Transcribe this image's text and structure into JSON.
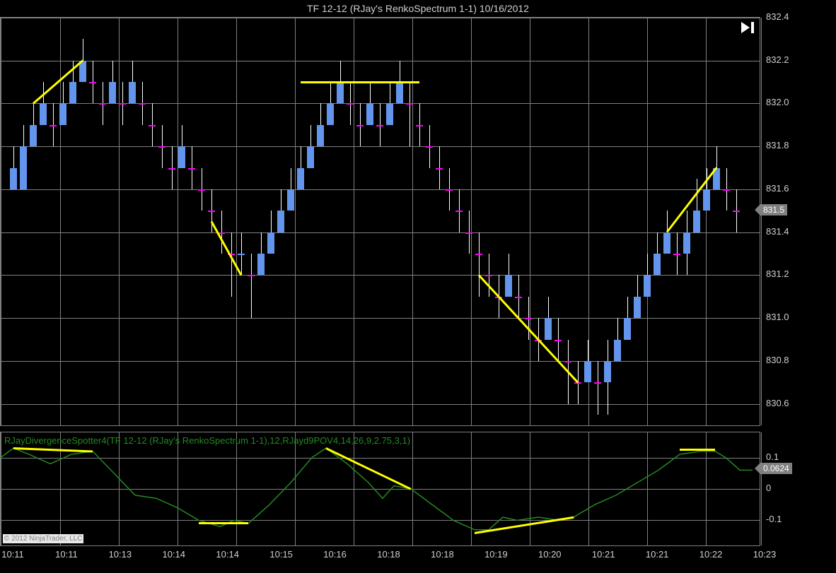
{
  "title": "TF 12-12 (RJay's RenkoSpectrum 1-1)  10/16/2012",
  "indicator_label": "RJayDivergenceSpotter4(TF 12-12 (RJay's RenkoSpectrum 1-1),12,RJayd9POV4,14,26,9,2.75,3,1)",
  "copyright": "© 2012 NinjaTrader, LLC",
  "colors": {
    "background": "#000000",
    "grid": "#808080",
    "text": "#d0d0d0",
    "up_candle": "#6495ed",
    "down_candle": "#ff00ff",
    "wick": "#ffffff",
    "trend_line": "#ffff00",
    "indicator_line": "#228b22",
    "price_marker": "#808080"
  },
  "main_chart": {
    "ymin": 830.5,
    "ymax": 832.4,
    "yticks": [
      830.6,
      830.8,
      831.0,
      831.2,
      831.4,
      831.6,
      831.8,
      832.0,
      832.2,
      832.4
    ],
    "current_price": 831.5,
    "xticks": [
      "10:11",
      "10:11",
      "10:13",
      "10:14",
      "10:14",
      "10:15",
      "10:16",
      "10:18",
      "10:18",
      "10:19",
      "10:20",
      "10:21",
      "10:21",
      "10:22",
      "10:23"
    ],
    "xgrid_positions": [
      0,
      84,
      167,
      250,
      333,
      416,
      499,
      582,
      665,
      748,
      831,
      914,
      997,
      1075
    ],
    "candles": [
      {
        "x": 18,
        "o": 831.6,
        "h": 831.8,
        "l": 831.6,
        "c": 831.7,
        "up": true
      },
      {
        "x": 32,
        "o": 831.6,
        "h": 831.9,
        "l": 831.6,
        "c": 831.8,
        "up": true
      },
      {
        "x": 46,
        "o": 831.8,
        "h": 832.0,
        "l": 831.8,
        "c": 831.9,
        "up": true
      },
      {
        "x": 60,
        "o": 831.9,
        "h": 832.1,
        "l": 831.9,
        "c": 832.0,
        "up": true
      },
      {
        "x": 74,
        "o": 831.9,
        "h": 832.0,
        "l": 831.8,
        "c": 831.9,
        "up": false
      },
      {
        "x": 88,
        "o": 831.9,
        "h": 832.1,
        "l": 831.9,
        "c": 832.0,
        "up": true
      },
      {
        "x": 102,
        "o": 832.0,
        "h": 832.2,
        "l": 832.0,
        "c": 832.1,
        "up": true
      },
      {
        "x": 116,
        "o": 832.1,
        "h": 832.3,
        "l": 832.1,
        "c": 832.2,
        "up": true
      },
      {
        "x": 130,
        "o": 832.1,
        "h": 832.2,
        "l": 832.0,
        "c": 832.1,
        "up": false
      },
      {
        "x": 144,
        "o": 832.0,
        "h": 832.1,
        "l": 831.9,
        "c": 832.0,
        "up": false
      },
      {
        "x": 158,
        "o": 832.0,
        "h": 832.2,
        "l": 832.0,
        "c": 832.1,
        "up": true
      },
      {
        "x": 172,
        "o": 832.0,
        "h": 832.1,
        "l": 831.9,
        "c": 832.0,
        "up": false
      },
      {
        "x": 186,
        "o": 832.0,
        "h": 832.2,
        "l": 832.0,
        "c": 832.1,
        "up": true
      },
      {
        "x": 200,
        "o": 832.0,
        "h": 832.1,
        "l": 831.9,
        "c": 832.0,
        "up": false
      },
      {
        "x": 214,
        "o": 831.9,
        "h": 832.0,
        "l": 831.8,
        "c": 831.9,
        "up": false
      },
      {
        "x": 228,
        "o": 831.8,
        "h": 831.9,
        "l": 831.7,
        "c": 831.8,
        "up": false
      },
      {
        "x": 242,
        "o": 831.7,
        "h": 831.8,
        "l": 831.6,
        "c": 831.7,
        "up": false
      },
      {
        "x": 256,
        "o": 831.7,
        "h": 831.9,
        "l": 831.7,
        "c": 831.8,
        "up": true
      },
      {
        "x": 270,
        "o": 831.7,
        "h": 831.8,
        "l": 831.6,
        "c": 831.7,
        "up": false
      },
      {
        "x": 284,
        "o": 831.6,
        "h": 831.7,
        "l": 831.5,
        "c": 831.6,
        "up": false
      },
      {
        "x": 298,
        "o": 831.5,
        "h": 831.6,
        "l": 831.4,
        "c": 831.5,
        "up": false
      },
      {
        "x": 312,
        "o": 831.4,
        "h": 831.5,
        "l": 831.3,
        "c": 831.4,
        "up": false
      },
      {
        "x": 326,
        "o": 831.3,
        "h": 831.4,
        "l": 831.1,
        "c": 831.3,
        "up": false
      },
      {
        "x": 340,
        "o": 831.3,
        "h": 831.4,
        "l": 831.2,
        "c": 831.3,
        "up": true
      },
      {
        "x": 354,
        "o": 831.2,
        "h": 831.3,
        "l": 831.0,
        "c": 831.2,
        "up": false
      },
      {
        "x": 368,
        "o": 831.2,
        "h": 831.4,
        "l": 831.2,
        "c": 831.3,
        "up": true
      },
      {
        "x": 382,
        "o": 831.3,
        "h": 831.5,
        "l": 831.3,
        "c": 831.4,
        "up": true
      },
      {
        "x": 396,
        "o": 831.4,
        "h": 831.6,
        "l": 831.4,
        "c": 831.5,
        "up": true
      },
      {
        "x": 410,
        "o": 831.5,
        "h": 831.7,
        "l": 831.5,
        "c": 831.6,
        "up": true
      },
      {
        "x": 424,
        "o": 831.6,
        "h": 831.8,
        "l": 831.6,
        "c": 831.7,
        "up": true
      },
      {
        "x": 438,
        "o": 831.7,
        "h": 831.9,
        "l": 831.7,
        "c": 831.8,
        "up": true
      },
      {
        "x": 452,
        "o": 831.8,
        "h": 832.0,
        "l": 831.8,
        "c": 831.9,
        "up": true
      },
      {
        "x": 466,
        "o": 831.9,
        "h": 832.1,
        "l": 831.9,
        "c": 832.0,
        "up": true
      },
      {
        "x": 480,
        "o": 832.0,
        "h": 832.2,
        "l": 832.0,
        "c": 832.1,
        "up": true
      },
      {
        "x": 494,
        "o": 832.0,
        "h": 832.1,
        "l": 831.9,
        "c": 832.0,
        "up": false
      },
      {
        "x": 508,
        "o": 831.9,
        "h": 832.0,
        "l": 831.8,
        "c": 831.9,
        "up": false
      },
      {
        "x": 522,
        "o": 831.9,
        "h": 832.1,
        "l": 831.9,
        "c": 832.0,
        "up": true
      },
      {
        "x": 536,
        "o": 831.9,
        "h": 832.0,
        "l": 831.8,
        "c": 831.9,
        "up": false
      },
      {
        "x": 550,
        "o": 831.9,
        "h": 832.1,
        "l": 831.9,
        "c": 832.0,
        "up": true
      },
      {
        "x": 564,
        "o": 832.0,
        "h": 832.2,
        "l": 832.0,
        "c": 832.1,
        "up": true
      },
      {
        "x": 578,
        "o": 832.0,
        "h": 832.1,
        "l": 831.8,
        "c": 832.0,
        "up": false
      },
      {
        "x": 592,
        "o": 831.9,
        "h": 832.0,
        "l": 831.8,
        "c": 831.9,
        "up": false
      },
      {
        "x": 606,
        "o": 831.8,
        "h": 831.9,
        "l": 831.7,
        "c": 831.8,
        "up": false
      },
      {
        "x": 620,
        "o": 831.7,
        "h": 831.8,
        "l": 831.6,
        "c": 831.7,
        "up": false
      },
      {
        "x": 634,
        "o": 831.6,
        "h": 831.7,
        "l": 831.5,
        "c": 831.6,
        "up": false
      },
      {
        "x": 648,
        "o": 831.5,
        "h": 831.6,
        "l": 831.4,
        "c": 831.5,
        "up": false
      },
      {
        "x": 662,
        "o": 831.4,
        "h": 831.5,
        "l": 831.3,
        "c": 831.4,
        "up": false
      },
      {
        "x": 676,
        "o": 831.3,
        "h": 831.4,
        "l": 831.1,
        "c": 831.3,
        "up": false
      },
      {
        "x": 690,
        "o": 831.2,
        "h": 831.3,
        "l": 831.1,
        "c": 831.2,
        "up": false
      },
      {
        "x": 704,
        "o": 831.1,
        "h": 831.2,
        "l": 831.0,
        "c": 831.1,
        "up": false
      },
      {
        "x": 718,
        "o": 831.1,
        "h": 831.3,
        "l": 831.1,
        "c": 831.2,
        "up": true
      },
      {
        "x": 732,
        "o": 831.1,
        "h": 831.2,
        "l": 831.0,
        "c": 831.1,
        "up": false
      },
      {
        "x": 746,
        "o": 831.0,
        "h": 831.1,
        "l": 830.9,
        "c": 831.0,
        "up": false
      },
      {
        "x": 760,
        "o": 830.9,
        "h": 831.0,
        "l": 830.8,
        "c": 830.9,
        "up": false
      },
      {
        "x": 774,
        "o": 830.9,
        "h": 831.1,
        "l": 830.9,
        "c": 831.0,
        "up": true
      },
      {
        "x": 788,
        "o": 830.9,
        "h": 831.0,
        "l": 830.8,
        "c": 830.9,
        "up": false
      },
      {
        "x": 802,
        "o": 830.8,
        "h": 830.9,
        "l": 830.6,
        "c": 830.8,
        "up": false
      },
      {
        "x": 816,
        "o": 830.7,
        "h": 830.8,
        "l": 830.6,
        "c": 830.7,
        "up": false
      },
      {
        "x": 830,
        "o": 830.7,
        "h": 830.9,
        "l": 830.7,
        "c": 830.8,
        "up": true
      },
      {
        "x": 844,
        "o": 830.7,
        "h": 830.8,
        "l": 830.55,
        "c": 830.7,
        "up": false
      },
      {
        "x": 858,
        "o": 830.7,
        "h": 830.9,
        "l": 830.55,
        "c": 830.8,
        "up": true
      },
      {
        "x": 872,
        "o": 830.8,
        "h": 831.0,
        "l": 830.8,
        "c": 830.9,
        "up": true
      },
      {
        "x": 886,
        "o": 830.9,
        "h": 831.1,
        "l": 830.9,
        "c": 831.0,
        "up": true
      },
      {
        "x": 900,
        "o": 831.0,
        "h": 831.2,
        "l": 831.0,
        "c": 831.1,
        "up": true
      },
      {
        "x": 914,
        "o": 831.1,
        "h": 831.3,
        "l": 831.1,
        "c": 831.2,
        "up": true
      },
      {
        "x": 928,
        "o": 831.2,
        "h": 831.4,
        "l": 831.2,
        "c": 831.3,
        "up": true
      },
      {
        "x": 942,
        "o": 831.3,
        "h": 831.5,
        "l": 831.3,
        "c": 831.4,
        "up": true
      },
      {
        "x": 956,
        "o": 831.3,
        "h": 831.4,
        "l": 831.2,
        "c": 831.3,
        "up": false
      },
      {
        "x": 970,
        "o": 831.3,
        "h": 831.5,
        "l": 831.2,
        "c": 831.4,
        "up": true
      },
      {
        "x": 984,
        "o": 831.4,
        "h": 831.65,
        "l": 831.4,
        "c": 831.5,
        "up": true
      },
      {
        "x": 998,
        "o": 831.5,
        "h": 831.7,
        "l": 831.5,
        "c": 831.6,
        "up": true
      },
      {
        "x": 1012,
        "o": 831.6,
        "h": 831.8,
        "l": 831.6,
        "c": 831.7,
        "up": true
      },
      {
        "x": 1026,
        "o": 831.6,
        "h": 831.7,
        "l": 831.5,
        "c": 831.6,
        "up": false
      },
      {
        "x": 1040,
        "o": 831.5,
        "h": 831.6,
        "l": 831.4,
        "c": 831.5,
        "up": false
      }
    ],
    "trend_lines": [
      {
        "x1": 46,
        "y1": 832.0,
        "x2": 116,
        "y2": 832.2
      },
      {
        "x1": 298,
        "y1": 831.45,
        "x2": 340,
        "y2": 831.2
      },
      {
        "x1": 424,
        "y1": 832.1,
        "x2": 592,
        "y2": 832.1
      },
      {
        "x1": 676,
        "y1": 831.2,
        "x2": 816,
        "y2": 830.7
      },
      {
        "x1": 942,
        "y1": 831.4,
        "x2": 1012,
        "y2": 831.7
      }
    ]
  },
  "indicator_chart": {
    "ymin": -0.18,
    "ymax": 0.18,
    "yticks": [
      -0.1,
      0,
      0.1
    ],
    "current_value": 0.0624,
    "line_points": [
      [
        0,
        0.1
      ],
      [
        18,
        0.13
      ],
      [
        40,
        0.11
      ],
      [
        70,
        0.08
      ],
      [
        100,
        0.11
      ],
      [
        130,
        0.12
      ],
      [
        160,
        0.05
      ],
      [
        190,
        -0.02
      ],
      [
        220,
        -0.03
      ],
      [
        250,
        -0.06
      ],
      [
        280,
        -0.1
      ],
      [
        310,
        -0.12
      ],
      [
        330,
        -0.1
      ],
      [
        350,
        -0.11
      ],
      [
        380,
        -0.05
      ],
      [
        410,
        0.02
      ],
      [
        440,
        0.1
      ],
      [
        460,
        0.13
      ],
      [
        490,
        0.08
      ],
      [
        520,
        0.02
      ],
      [
        540,
        -0.03
      ],
      [
        556,
        0.01
      ],
      [
        580,
        0.0
      ],
      [
        610,
        -0.05
      ],
      [
        640,
        -0.1
      ],
      [
        670,
        -0.13
      ],
      [
        690,
        -0.13
      ],
      [
        710,
        -0.09
      ],
      [
        730,
        -0.1
      ],
      [
        760,
        -0.09
      ],
      [
        790,
        -0.1
      ],
      [
        810,
        -0.09
      ],
      [
        840,
        -0.05
      ],
      [
        870,
        -0.02
      ],
      [
        900,
        0.02
      ],
      [
        930,
        0.06
      ],
      [
        960,
        0.11
      ],
      [
        990,
        0.12
      ],
      [
        1010,
        0.12
      ],
      [
        1025,
        0.1
      ],
      [
        1045,
        0.06
      ],
      [
        1063,
        0.06
      ]
    ],
    "trend_lines": [
      {
        "x1": 18,
        "y1": 0.13,
        "x2": 130,
        "y2": 0.12
      },
      {
        "x1": 280,
        "y1": -0.11,
        "x2": 350,
        "y2": -0.11
      },
      {
        "x1": 460,
        "y1": 0.13,
        "x2": 580,
        "y2": 0.0
      },
      {
        "x1": 670,
        "y1": -0.14,
        "x2": 810,
        "y2": -0.09
      },
      {
        "x1": 960,
        "y1": 0.125,
        "x2": 1010,
        "y2": 0.125
      }
    ]
  }
}
